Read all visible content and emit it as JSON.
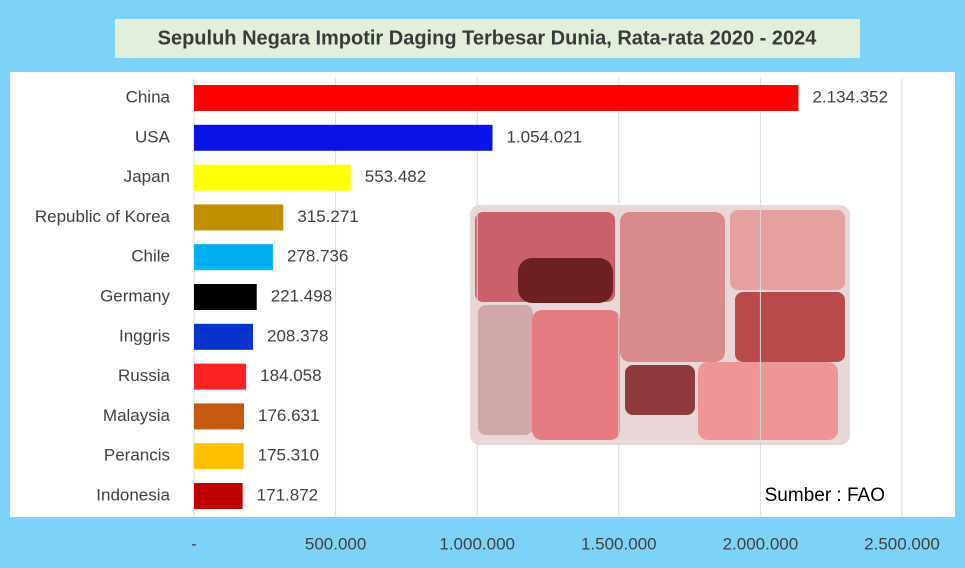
{
  "chart_data": {
    "type": "bar",
    "orientation": "horizontal",
    "title": "Sepuluh Negara Impotir Daging Terbesar Dunia, Rata-rata 2020 - 2024",
    "categories": [
      "China",
      "USA",
      "Japan",
      "Republic of Korea",
      "Chile",
      "Germany",
      "Inggris",
      "Russia",
      "Malaysia",
      "Perancis",
      "Indonesia"
    ],
    "values": [
      2134352,
      1054021,
      553482,
      315271,
      278736,
      221498,
      208378,
      184058,
      176631,
      175310,
      171872
    ],
    "value_labels": [
      "2.134.352",
      "1.054.021",
      "553.482",
      "315.271",
      "278.736",
      "221.498",
      "208.378",
      "184.058",
      "176.631",
      "175.310",
      "171.872"
    ],
    "colors": [
      "#ff0000",
      "#0a14e6",
      "#ffff00",
      "#bf8f00",
      "#00b0f0",
      "#000000",
      "#0533cc",
      "#fa2222",
      "#c55a11",
      "#ffc000",
      "#c00000"
    ],
    "xlim": [
      0,
      2500000
    ],
    "xticks": [
      {
        "value": 0,
        "label": "-"
      },
      {
        "value": 500000,
        "label": "500.000"
      },
      {
        "value": 1000000,
        "label": "1.000.000"
      },
      {
        "value": 1500000,
        "label": "1.500.000"
      },
      {
        "value": 2000000,
        "label": "2.000.000"
      },
      {
        "value": 2500000,
        "label": "2.500.000"
      }
    ],
    "grid": true,
    "source": "Sumber : FAO"
  }
}
